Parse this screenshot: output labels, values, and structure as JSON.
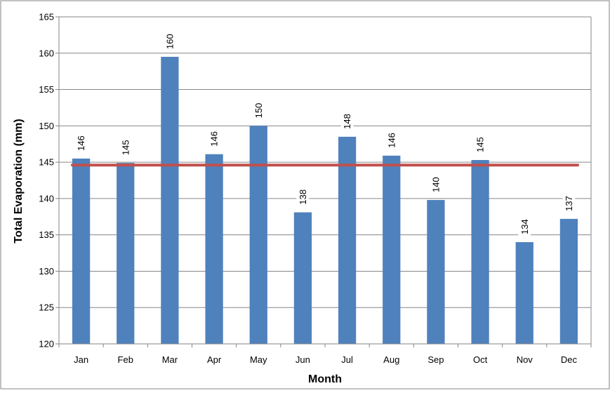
{
  "chart_data": {
    "type": "bar",
    "title": "",
    "xlabel": "Month",
    "ylabel": "Total Evaporation (mm)",
    "categories": [
      "Jan",
      "Feb",
      "Mar",
      "Apr",
      "May",
      "Jun",
      "Jul",
      "Aug",
      "Sep",
      "Oct",
      "Nov",
      "Dec"
    ],
    "values": [
      145.5,
      144.9,
      159.5,
      146.1,
      150.0,
      138.1,
      148.5,
      145.9,
      139.8,
      145.3,
      134.0,
      137.2
    ],
    "data_labels": [
      "146",
      "145",
      "160",
      "146",
      "150",
      "138",
      "148",
      "146",
      "140",
      "145",
      "134",
      "137"
    ],
    "ylim": [
      120,
      165
    ],
    "yticks": [
      "120",
      "125",
      "130",
      "135",
      "140",
      "145",
      "150",
      "155",
      "160",
      "165"
    ],
    "reference_line": {
      "value": 144.6
    },
    "grid": true,
    "legend": "none",
    "colors": {
      "bar": "#4f81bd",
      "reference_line": "#c0504d",
      "grid": "#868686",
      "border": "#868686"
    }
  }
}
